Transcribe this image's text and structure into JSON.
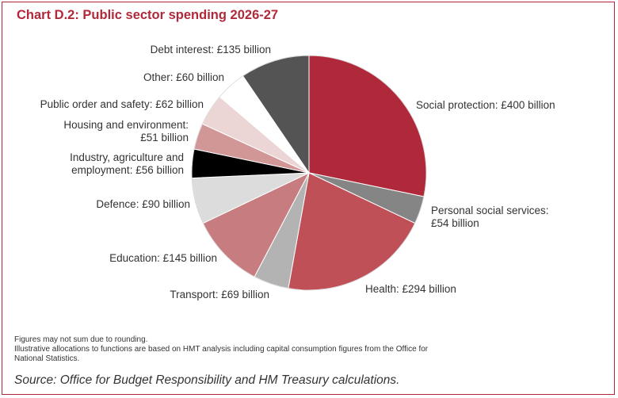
{
  "chart_data": {
    "type": "pie",
    "title": "Chart D.2: Public sector spending 2026-27",
    "unit": "£ billion",
    "slices": [
      {
        "label": "Social protection: £400 billion",
        "lines": [
          "Social protection: £400 billion"
        ],
        "value": 400,
        "color": "#b0293a"
      },
      {
        "label": "Personal social services: £54 billion",
        "lines": [
          "Personal social services:",
          "£54 billion"
        ],
        "value": 54,
        "color": "#858585"
      },
      {
        "label": "Health: £294 billion",
        "lines": [
          "Health: £294 billion"
        ],
        "value": 294,
        "color": "#bf5057"
      },
      {
        "label": "Transport: £69 billion",
        "lines": [
          "Transport: £69 billion"
        ],
        "value": 69,
        "color": "#b3b3b3"
      },
      {
        "label": "Education: £145 billion",
        "lines": [
          "Education: £145 billion"
        ],
        "value": 145,
        "color": "#c77d7f"
      },
      {
        "label": "Defence: £90 billion",
        "lines": [
          "Defence: £90 billion"
        ],
        "value": 90,
        "color": "#dcdcdc"
      },
      {
        "label": "Industry, agriculture and employment: £56 billion",
        "lines": [
          "Industry, agriculture and",
          "employment: £56 billion"
        ],
        "value": 56,
        "color": "#000000"
      },
      {
        "label": "Housing and environment: £51 billion",
        "lines": [
          "Housing and environment:",
          "£51 billion"
        ],
        "value": 51,
        "color": "#d19797"
      },
      {
        "label": "Public order and safety: £62 billion",
        "lines": [
          "Public order and safety: £62 billion"
        ],
        "value": 62,
        "color": "#ecd5d5"
      },
      {
        "label": "Other: £60 billion",
        "lines": [
          "Other: £60 billion"
        ],
        "value": 60,
        "color": "#ffffff"
      },
      {
        "label": "Debt interest: £135 billion",
        "lines": [
          "Debt interest: £135 billion"
        ],
        "value": 135,
        "color": "#545454"
      }
    ]
  },
  "notes": [
    "Figures may not sum due to rounding.",
    "Illustrative allocations to functions are based on HMT analysis including capital consumption figures from the Office for",
    "National Statistics."
  ],
  "source": "Source: Office for Budget Responsibility and HM Treasury calculations.",
  "colors": {
    "accent": "#b0293a",
    "text": "#333333"
  }
}
